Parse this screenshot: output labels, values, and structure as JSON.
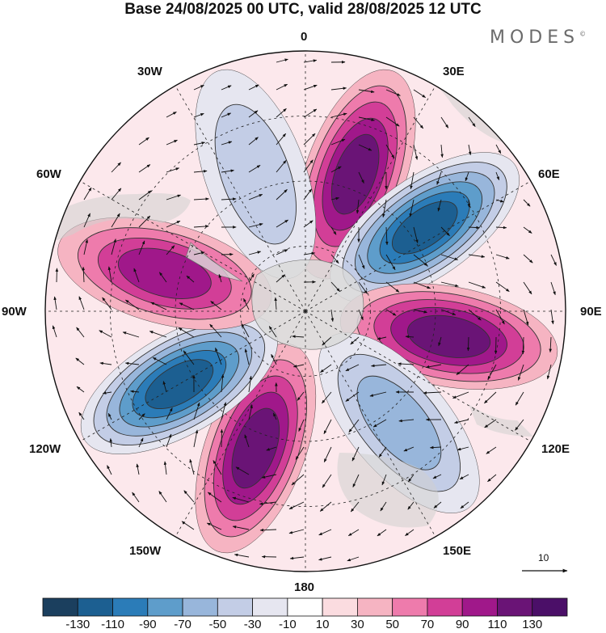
{
  "title": "Base 24/08/2025 00 UTC, valid 28/08/2025 12 UTC",
  "brand": "MODES",
  "brand_mark": "©",
  "map": {
    "projection": "south-polar-stereographic",
    "longitude_labels": {
      "lon_0": "0",
      "lon_30e": "30E",
      "lon_60e": "60E",
      "lon_90e": "90E",
      "lon_120e": "120E",
      "lon_150e": "150E",
      "lon_180": "180",
      "lon_150w": "150W",
      "lon_120w": "120W",
      "lon_90w": "90W",
      "lon_60w": "60W",
      "lon_30w": "30W"
    },
    "reference_vector_label": "10",
    "anomaly_centers": [
      {
        "lon": 20,
        "value": 110,
        "sign": "positive"
      },
      {
        "lon": 55,
        "value": -130,
        "sign": "negative"
      },
      {
        "lon": 100,
        "value": 120,
        "sign": "positive"
      },
      {
        "lon": 140,
        "value": -80,
        "sign": "negative"
      },
      {
        "lon": -160,
        "value": 110,
        "sign": "positive"
      },
      {
        "lon": -120,
        "value": -130,
        "sign": "negative"
      },
      {
        "lon": -75,
        "value": 90,
        "sign": "positive"
      },
      {
        "lon": -20,
        "value": -50,
        "sign": "negative"
      }
    ]
  },
  "colorbar": {
    "ticks": [
      "-130",
      "-110",
      "-90",
      "-70",
      "-50",
      "-30",
      "-10",
      "10",
      "30",
      "50",
      "70",
      "90",
      "110",
      "130"
    ],
    "colors": [
      "#1b3f5e",
      "#1c5f91",
      "#2b7cb8",
      "#5e9dcb",
      "#98b6db",
      "#c3cde6",
      "#e6e6f0",
      "#ffffff",
      "#fbdce0",
      "#f6b4c2",
      "#ee7bac",
      "#d23e97",
      "#a0188a",
      "#6a1476",
      "#4b0f68"
    ]
  }
}
